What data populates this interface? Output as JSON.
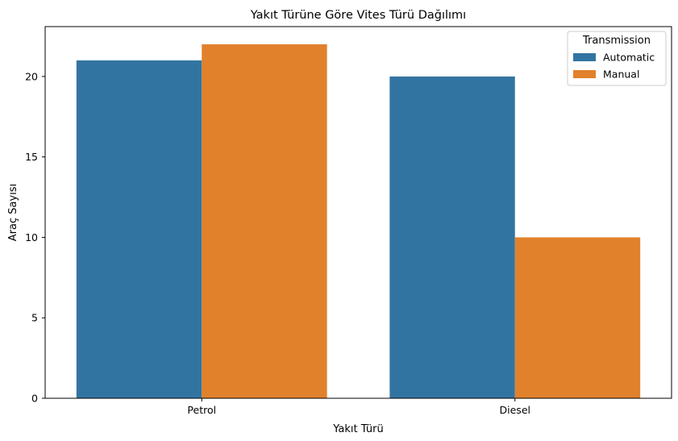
{
  "chart_data": {
    "type": "bar",
    "title": "Yakıt Türüne Göre Vites Türü Dağılımı",
    "xlabel": "Yakıt Türü",
    "ylabel": "Araç Sayısı",
    "categories": [
      "Petrol",
      "Diesel"
    ],
    "series": [
      {
        "name": "Automatic",
        "color": "#3274a1",
        "values": [
          21,
          20
        ]
      },
      {
        "name": "Manual",
        "color": "#e1812c",
        "values": [
          22,
          10
        ]
      }
    ],
    "ylim": [
      0,
      23.1
    ],
    "yticks": [
      0,
      5,
      10,
      15,
      20
    ],
    "grid": false,
    "legend": {
      "title": "Transmission",
      "position": "top-right"
    }
  }
}
